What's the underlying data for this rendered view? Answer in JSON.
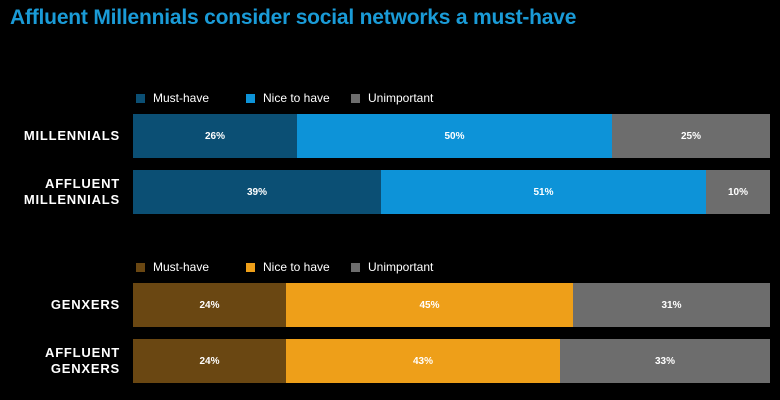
{
  "title": "Affluent Millennials consider social networks a must-have",
  "colors": {
    "title": "#1a9bd7",
    "blue_must": "#0b4f74",
    "blue_nice": "#0d93d8",
    "orange_must": "#6a4712",
    "orange_nice": "#ee9f19",
    "unimportant": "#6d6d6d"
  },
  "chart_data": [
    {
      "type": "bar",
      "orientation": "horizontal",
      "stacked": true,
      "categories": [
        "MILLENNIALS",
        "AFFLUENT MILLENNIALS"
      ],
      "category_lines": [
        [
          "MILLENNIALS"
        ],
        [
          "AFFLUENT",
          "MILLENNIALS"
        ]
      ],
      "series": [
        {
          "name": "Must-have",
          "values": [
            26,
            39
          ],
          "labels": [
            "26%",
            "39%"
          ],
          "color": "#0b4f74"
        },
        {
          "name": "Nice to have",
          "values": [
            50,
            51
          ],
          "labels": [
            "50%",
            "51%"
          ],
          "color": "#0d93d8"
        },
        {
          "name": "Unimportant",
          "values": [
            25,
            10
          ],
          "labels": [
            "25%",
            "10%"
          ],
          "color": "#6d6d6d"
        }
      ],
      "legend": "top-left"
    },
    {
      "type": "bar",
      "orientation": "horizontal",
      "stacked": true,
      "categories": [
        "GenXers",
        "AFFLUENT GenXers"
      ],
      "category_lines": [
        [
          "GENXERS"
        ],
        [
          "AFFLUENT",
          "GENXERS"
        ]
      ],
      "series": [
        {
          "name": "Must-have",
          "values": [
            24,
            24
          ],
          "labels": [
            "24%",
            "24%"
          ],
          "color": "#6a4712"
        },
        {
          "name": "Nice to have",
          "values": [
            45,
            43
          ],
          "labels": [
            "45%",
            "43%"
          ],
          "color": "#ee9f19"
        },
        {
          "name": "Unimportant",
          "values": [
            31,
            33
          ],
          "labels": [
            "31%",
            "33%"
          ],
          "color": "#6d6d6d"
        }
      ],
      "legend": "top-left"
    }
  ]
}
